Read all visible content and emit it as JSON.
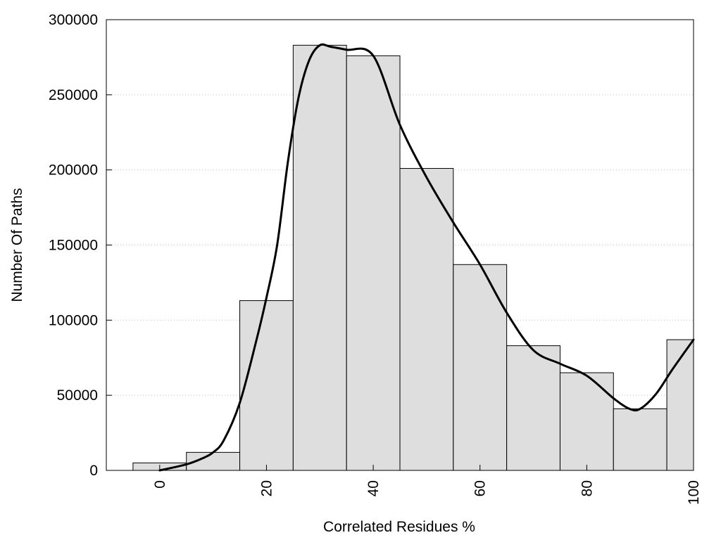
{
  "chart_data": {
    "type": "bar",
    "title": "",
    "xlabel": "Correlated Residues %",
    "ylabel": "Number Of Paths",
    "xlim": [
      -10,
      100
    ],
    "ylim": [
      0,
      300000
    ],
    "grid": "horizontal dotted",
    "x_ticks": [
      "0",
      "20",
      "40",
      "60",
      "80",
      "100"
    ],
    "y_ticks": [
      "0",
      "50000",
      "100000",
      "150000",
      "200000",
      "250000",
      "300000"
    ],
    "x_tick_values": [
      0,
      20,
      40,
      60,
      80,
      100
    ],
    "y_tick_values": [
      0,
      50000,
      100000,
      150000,
      200000,
      250000,
      300000
    ],
    "bin_centers": [
      0,
      10,
      20,
      30,
      40,
      50,
      60,
      70,
      80,
      90,
      100
    ],
    "values": [
      5000,
      12000,
      113000,
      283000,
      276000,
      201000,
      137000,
      83000,
      65000,
      41000,
      87000
    ],
    "density_curve": {
      "x": [
        0,
        5,
        8,
        10,
        12,
        15,
        18,
        20,
        22,
        24,
        26,
        28,
        30,
        32,
        35,
        40,
        45,
        50,
        55,
        60,
        65,
        70,
        75,
        80,
        85,
        88,
        90,
        93,
        96,
        100
      ],
      "y": [
        0,
        4000,
        8000,
        12000,
        20000,
        45000,
        85000,
        115000,
        150000,
        205000,
        248000,
        273000,
        283000,
        282000,
        280000,
        276000,
        230000,
        195000,
        165000,
        137000,
        105000,
        80000,
        71000,
        63000,
        48000,
        41000,
        41000,
        51000,
        67000,
        87000
      ]
    }
  },
  "colors": {
    "bar_fill": "#dedede",
    "bar_stroke": "#000000",
    "curve": "#000000",
    "grid": "#c0c0c0",
    "background": "#ffffff"
  }
}
